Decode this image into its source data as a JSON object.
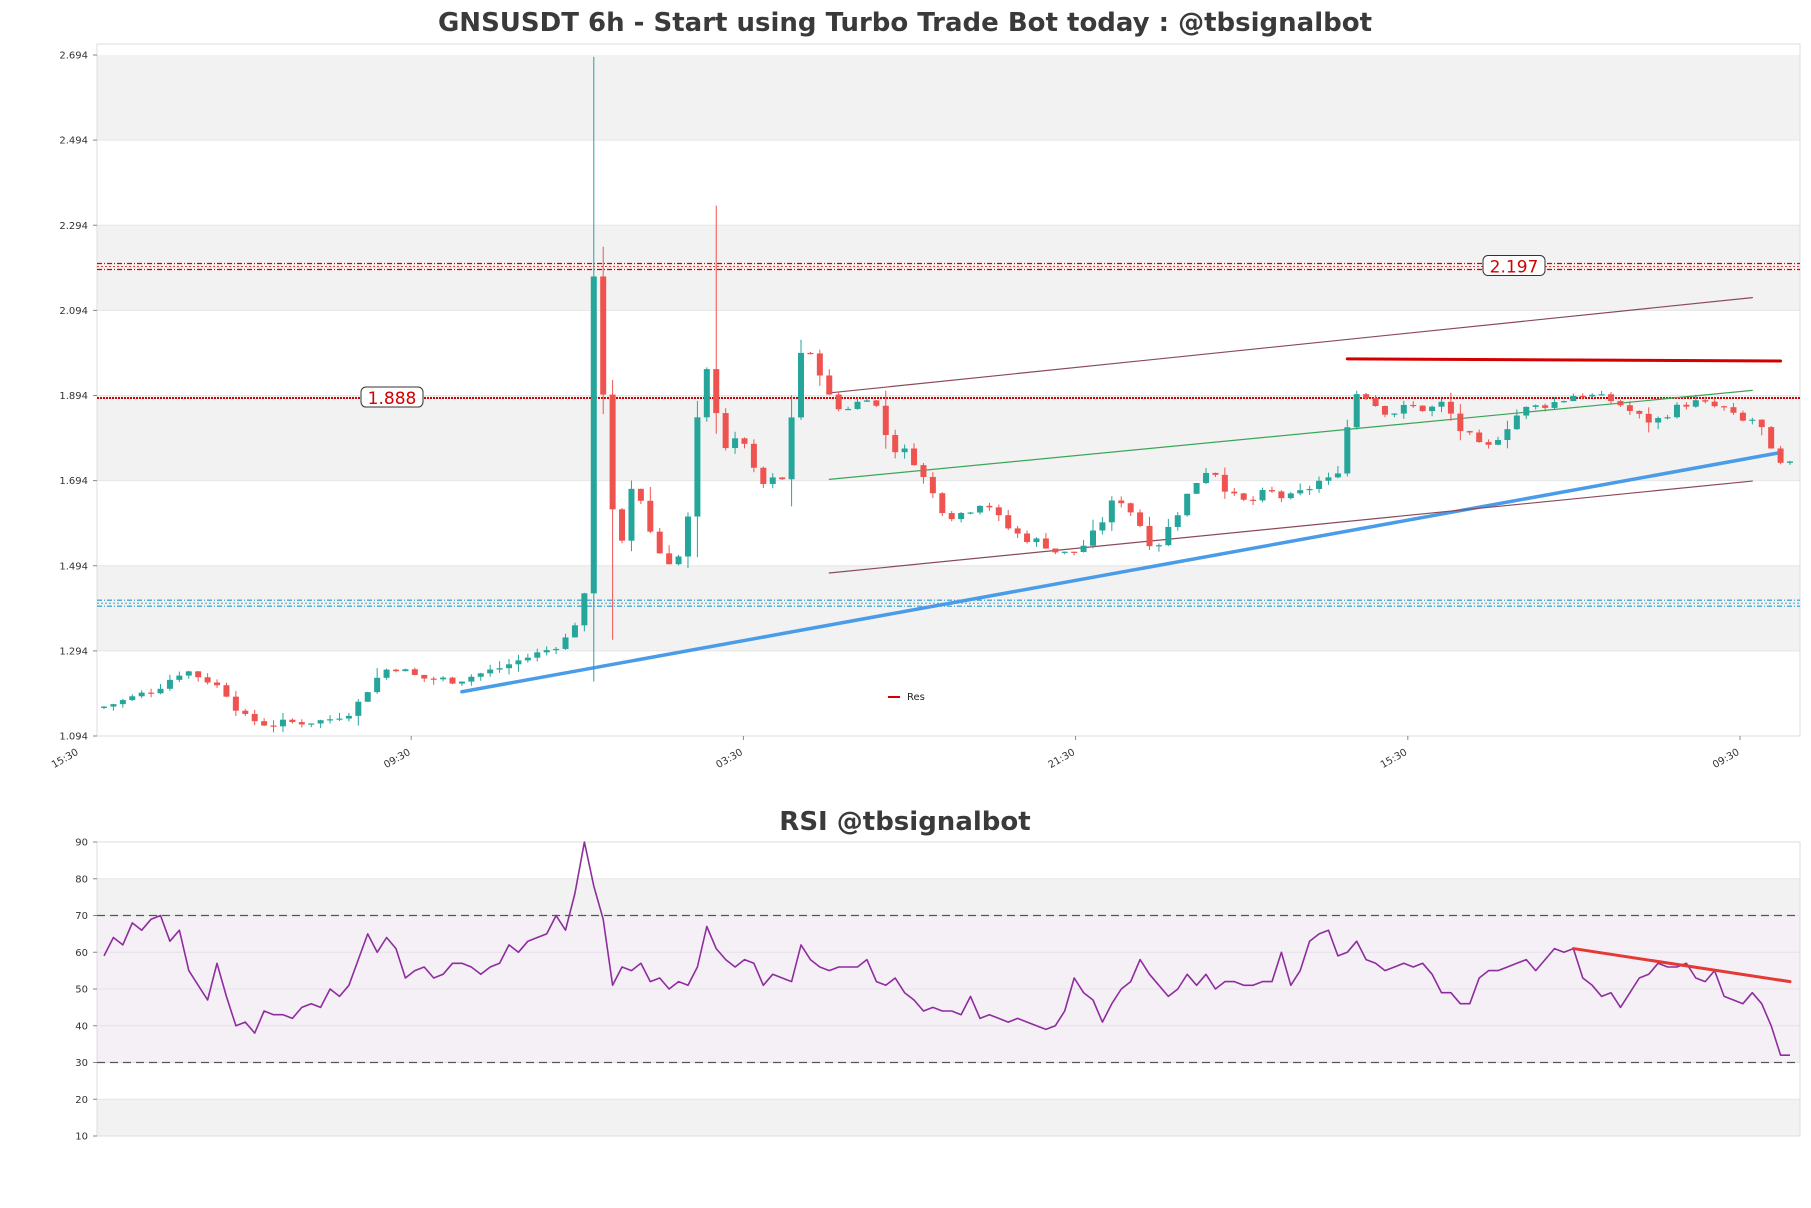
{
  "colors": {
    "up": "#26a69a",
    "down": "#ef5350",
    "band": "#f2f2f2",
    "resistance": "#d40000",
    "support": "#1f9bd1",
    "trend_support": "#4a9be8",
    "channel": "#8b4a5a",
    "mid_channel": "#3aa657",
    "rsi_line": "#8e2d9e",
    "rsi_trend": "#e53935"
  },
  "chart_data": [
    {
      "type": "candlestick",
      "title": "GNSUSDT 6h - Start using Turbo Trade Bot today : @tbsignalbot",
      "y_ticks": [
        "2.694",
        "2.494",
        "2.294",
        "2.094",
        "1.894",
        "1.694",
        "1.494",
        "1.294",
        "1.094"
      ],
      "ylim": [
        1.094,
        2.694
      ],
      "x_ticks": [
        "15:30",
        "09:30",
        "03:30",
        "21:30",
        "15:30",
        "09:30"
      ],
      "levels": [
        {
          "label": "2.197",
          "value": 2.197,
          "kind": "resistance"
        },
        {
          "label": "1.888",
          "value": 1.888,
          "kind": "resistance"
        },
        {
          "label": "",
          "value": 1.406,
          "kind": "support"
        }
      ],
      "legend": [
        "Res"
      ],
      "trend_lines": [
        {
          "kind": "resistance",
          "from": [
            132,
            1.98
          ],
          "to": [
            178,
            1.975
          ]
        },
        {
          "kind": "trend_support",
          "from": [
            38,
            1.198
          ],
          "to": [
            178,
            1.76
          ]
        },
        {
          "kind": "channel",
          "from": [
            77,
            1.9
          ],
          "to": [
            175,
            2.124
          ]
        },
        {
          "kind": "channel",
          "from": [
            77,
            1.477
          ],
          "to": [
            175,
            1.693
          ]
        },
        {
          "kind": "mid_channel",
          "from": [
            77,
            1.697
          ],
          "to": [
            175,
            1.906
          ]
        }
      ],
      "anchors": [
        [
          0,
          1.16
        ],
        [
          3,
          1.18
        ],
        [
          6,
          1.205
        ],
        [
          9,
          1.25
        ],
        [
          12,
          1.22
        ],
        [
          14,
          1.185
        ],
        [
          15,
          1.14
        ],
        [
          18,
          1.12
        ],
        [
          20,
          1.125
        ],
        [
          24,
          1.13
        ],
        [
          27,
          1.155
        ],
        [
          29,
          1.22
        ],
        [
          31,
          1.26
        ],
        [
          34,
          1.23
        ],
        [
          38,
          1.225
        ],
        [
          42,
          1.25
        ],
        [
          45,
          1.275
        ],
        [
          48,
          1.3
        ],
        [
          50,
          1.33
        ],
        [
          52,
          1.45
        ],
        [
          52.5,
          2.18
        ],
        [
          53,
          2.0
        ],
        [
          54,
          1.8
        ],
        [
          55,
          1.44
        ],
        [
          56,
          1.65
        ],
        [
          57,
          1.7
        ],
        [
          58,
          1.6
        ],
        [
          59,
          1.55
        ],
        [
          60,
          1.5
        ],
        [
          62,
          1.52
        ],
        [
          63,
          1.69
        ],
        [
          64,
          1.98
        ],
        [
          65,
          1.92
        ],
        [
          66,
          1.8
        ],
        [
          67,
          1.75
        ],
        [
          68,
          1.82
        ],
        [
          70,
          1.68
        ],
        [
          72,
          1.7
        ],
        [
          73,
          1.69
        ],
        [
          74,
          2.0
        ],
        [
          76,
          1.98
        ],
        [
          78,
          1.86
        ],
        [
          80,
          1.87
        ],
        [
          82,
          1.9
        ],
        [
          84,
          1.77
        ],
        [
          86,
          1.76
        ],
        [
          88,
          1.68
        ],
        [
          90,
          1.61
        ],
        [
          92,
          1.62
        ],
        [
          94,
          1.65
        ],
        [
          96,
          1.59
        ],
        [
          98,
          1.56
        ],
        [
          100,
          1.55
        ],
        [
          102,
          1.52
        ],
        [
          104,
          1.53
        ],
        [
          106,
          1.58
        ],
        [
          108,
          1.66
        ],
        [
          110,
          1.61
        ],
        [
          112,
          1.53
        ],
        [
          114,
          1.6
        ],
        [
          116,
          1.68
        ],
        [
          118,
          1.73
        ],
        [
          120,
          1.66
        ],
        [
          122,
          1.64
        ],
        [
          124,
          1.67
        ],
        [
          126,
          1.65
        ],
        [
          128,
          1.67
        ],
        [
          130,
          1.7
        ],
        [
          131,
          1.69
        ],
        [
          132,
          1.75
        ],
        [
          133,
          1.89
        ],
        [
          134,
          1.91
        ],
        [
          135,
          1.88
        ],
        [
          137,
          1.85
        ],
        [
          139,
          1.87
        ],
        [
          141,
          1.86
        ],
        [
          143,
          1.88
        ],
        [
          144,
          1.82
        ],
        [
          146,
          1.79
        ],
        [
          147,
          1.76
        ],
        [
          149,
          1.81
        ],
        [
          151,
          1.86
        ],
        [
          153,
          1.87
        ],
        [
          155,
          1.88
        ],
        [
          157,
          1.9
        ],
        [
          159,
          1.89
        ],
        [
          161,
          1.88
        ],
        [
          163,
          1.85
        ],
        [
          165,
          1.83
        ],
        [
          167,
          1.86
        ],
        [
          169,
          1.88
        ],
        [
          171,
          1.87
        ],
        [
          173,
          1.86
        ],
        [
          174,
          1.83
        ],
        [
          176,
          1.84
        ],
        [
          177,
          1.79
        ],
        [
          178,
          1.73
        ],
        [
          179,
          1.73
        ]
      ],
      "candle_count": 180
    },
    {
      "type": "line",
      "title": "RSI @tbsignalbot",
      "y_ticks": [
        "90",
        "80",
        "70",
        "60",
        "50",
        "40",
        "30",
        "20",
        "10"
      ],
      "ylim": [
        10,
        90
      ],
      "overbought": 70,
      "oversold": 30,
      "trend_line": {
        "from": [
          156,
          61
        ],
        "to": [
          179,
          52
        ]
      },
      "values": [
        59,
        64,
        62,
        68,
        66,
        69,
        70,
        63,
        66,
        55,
        51,
        47,
        57,
        48,
        40,
        41,
        38,
        44,
        43,
        43,
        42,
        45,
        46,
        45,
        50,
        48,
        51,
        58,
        65,
        60,
        64,
        61,
        53,
        55,
        56,
        53,
        54,
        57,
        57,
        56,
        54,
        56,
        57,
        62,
        60,
        63,
        64,
        65,
        70,
        66,
        76,
        90,
        78,
        69,
        51,
        56,
        55,
        57,
        52,
        53,
        50,
        52,
        51,
        56,
        67,
        61,
        58,
        56,
        58,
        57,
        51,
        54,
        53,
        52,
        62,
        58,
        56,
        55,
        56,
        56,
        56,
        58,
        52,
        51,
        53,
        49,
        47,
        44,
        45,
        44,
        44,
        43,
        48,
        42,
        43,
        42,
        41,
        42,
        41,
        40,
        39,
        40,
        44,
        53,
        49,
        47,
        41,
        46,
        50,
        52,
        58,
        54,
        51,
        48,
        50,
        54,
        51,
        54,
        50,
        52,
        52,
        51,
        51,
        52,
        52,
        60,
        51,
        55,
        63,
        65,
        66,
        59,
        60,
        63,
        58,
        57,
        55,
        56,
        57,
        56,
        57,
        54,
        49,
        49,
        46,
        46,
        53,
        55,
        55,
        56,
        57,
        58,
        55,
        58,
        61,
        60,
        61,
        53,
        51,
        48,
        49,
        45,
        49,
        53,
        54,
        57,
        56,
        56,
        57,
        53,
        52,
        55,
        48,
        47,
        46,
        49,
        46,
        40,
        32,
        32
      ]
    }
  ],
  "rsi_ticks_minor": true
}
